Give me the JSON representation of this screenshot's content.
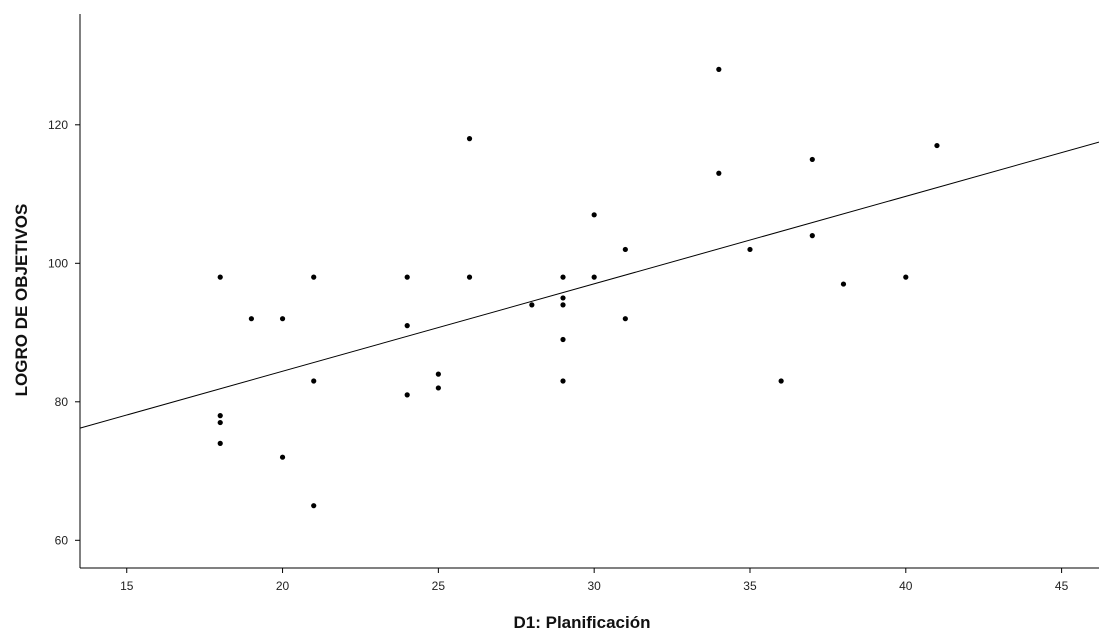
{
  "chart_data": {
    "type": "scatter",
    "title": "",
    "xlabel": "D1: Planificación",
    "ylabel": "LOGRO DE OBJETIVOS",
    "xlim": [
      13.5,
      46.2
    ],
    "ylim": [
      56,
      136
    ],
    "x_ticks": [
      15,
      20,
      25,
      30,
      35,
      40,
      45
    ],
    "y_ticks": [
      60,
      80,
      100,
      120
    ],
    "grid": false,
    "legend": "none",
    "colors": {
      "points": "#000000",
      "line": "#000000",
      "axes": "#000000"
    },
    "points": [
      {
        "x": 18,
        "y": 98
      },
      {
        "x": 18,
        "y": 78
      },
      {
        "x": 18,
        "y": 77
      },
      {
        "x": 18,
        "y": 74
      },
      {
        "x": 19,
        "y": 92
      },
      {
        "x": 20,
        "y": 92
      },
      {
        "x": 20,
        "y": 72
      },
      {
        "x": 21,
        "y": 98
      },
      {
        "x": 21,
        "y": 83
      },
      {
        "x": 21,
        "y": 65
      },
      {
        "x": 24,
        "y": 98
      },
      {
        "x": 24,
        "y": 91
      },
      {
        "x": 24,
        "y": 81
      },
      {
        "x": 25,
        "y": 84
      },
      {
        "x": 25,
        "y": 82
      },
      {
        "x": 26,
        "y": 118
      },
      {
        "x": 26,
        "y": 98
      },
      {
        "x": 28,
        "y": 94
      },
      {
        "x": 29,
        "y": 98
      },
      {
        "x": 29,
        "y": 95
      },
      {
        "x": 29,
        "y": 94
      },
      {
        "x": 29,
        "y": 89
      },
      {
        "x": 29,
        "y": 83
      },
      {
        "x": 30,
        "y": 107
      },
      {
        "x": 30,
        "y": 98
      },
      {
        "x": 31,
        "y": 102
      },
      {
        "x": 31,
        "y": 92
      },
      {
        "x": 34,
        "y": 128
      },
      {
        "x": 34,
        "y": 113
      },
      {
        "x": 35,
        "y": 102
      },
      {
        "x": 36,
        "y": 83
      },
      {
        "x": 37,
        "y": 115
      },
      {
        "x": 37,
        "y": 104
      },
      {
        "x": 38,
        "y": 97
      },
      {
        "x": 40,
        "y": 98
      },
      {
        "x": 41,
        "y": 117
      }
    ],
    "fit_line": {
      "x": [
        13.5,
        46.2
      ],
      "y": [
        76.2,
        117.5
      ]
    }
  }
}
